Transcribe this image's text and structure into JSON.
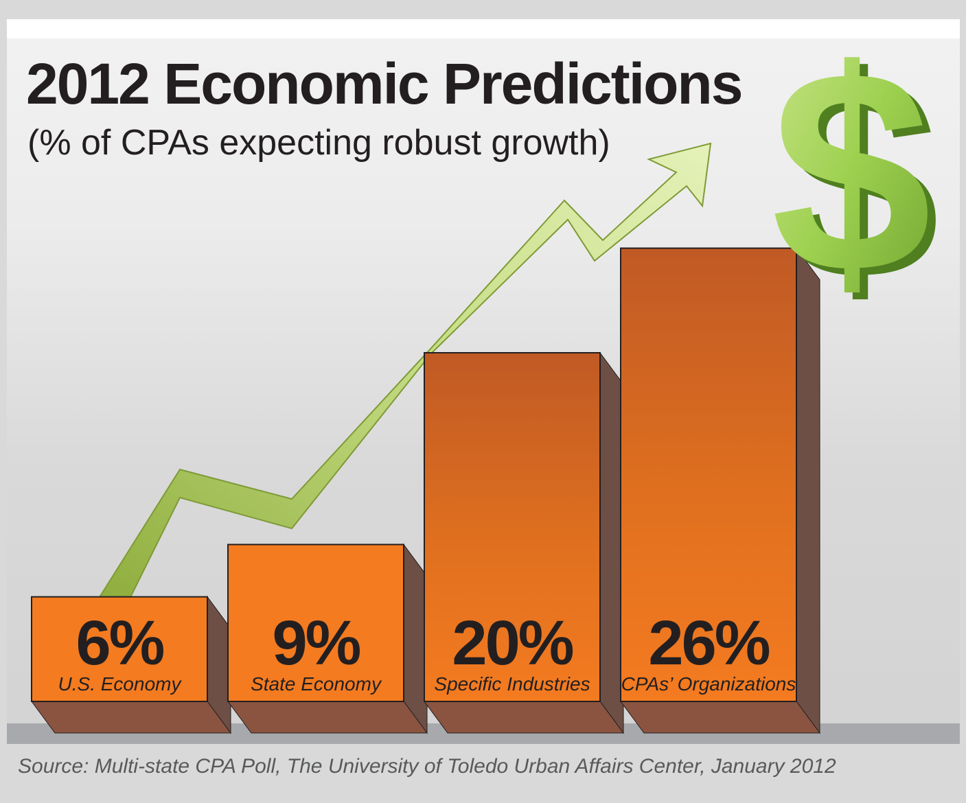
{
  "chart_data": {
    "type": "bar",
    "title": "2012 Economic Predictions",
    "subtitle": "(% of CPAs expecting robust growth)",
    "categories": [
      "U.S. Economy",
      "State Economy",
      "Specific Industries",
      "CPAs’ Organizations"
    ],
    "values": [
      6,
      9,
      20,
      26
    ],
    "value_labels": [
      "6%",
      "9%",
      "20%",
      "26%"
    ],
    "unit": "%",
    "ylim": [
      0,
      30
    ],
    "grid": false,
    "legend": "none",
    "source": "Source: Multi-state CPA Poll, The University of Toledo Urban Affairs Center, January 2012"
  },
  "colors": {
    "bar_face_bottom": "#f47b20",
    "bar_face_top": "#c45e26",
    "bar_side": "#6e4f45",
    "bar_bottom": "#8a5440",
    "arrow_green": "#a4c956",
    "dollar_green": "#8dc63f",
    "base": "#a7a9ac"
  },
  "icons": [
    "trend-arrow-icon",
    "dollar-sign-icon"
  ]
}
